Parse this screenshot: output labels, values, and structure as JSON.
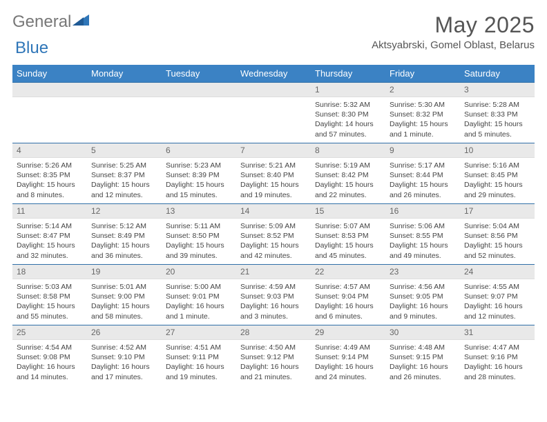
{
  "logo": {
    "general": "General",
    "blue": "Blue"
  },
  "title": "May 2025",
  "location": "Aktsyabrski, Gomel Oblast, Belarus",
  "header_color": "#3b82c4",
  "border_color": "#2f6fa8",
  "daynum_bg": "#e9e9e9",
  "weekdays": [
    "Sunday",
    "Monday",
    "Tuesday",
    "Wednesday",
    "Thursday",
    "Friday",
    "Saturday"
  ],
  "weeks": [
    [
      null,
      null,
      null,
      null,
      {
        "n": "1",
        "sunrise": "5:32 AM",
        "sunset": "8:30 PM",
        "daylight": "14 hours and 57 minutes."
      },
      {
        "n": "2",
        "sunrise": "5:30 AM",
        "sunset": "8:32 PM",
        "daylight": "15 hours and 1 minute."
      },
      {
        "n": "3",
        "sunrise": "5:28 AM",
        "sunset": "8:33 PM",
        "daylight": "15 hours and 5 minutes."
      }
    ],
    [
      {
        "n": "4",
        "sunrise": "5:26 AM",
        "sunset": "8:35 PM",
        "daylight": "15 hours and 8 minutes."
      },
      {
        "n": "5",
        "sunrise": "5:25 AM",
        "sunset": "8:37 PM",
        "daylight": "15 hours and 12 minutes."
      },
      {
        "n": "6",
        "sunrise": "5:23 AM",
        "sunset": "8:39 PM",
        "daylight": "15 hours and 15 minutes."
      },
      {
        "n": "7",
        "sunrise": "5:21 AM",
        "sunset": "8:40 PM",
        "daylight": "15 hours and 19 minutes."
      },
      {
        "n": "8",
        "sunrise": "5:19 AM",
        "sunset": "8:42 PM",
        "daylight": "15 hours and 22 minutes."
      },
      {
        "n": "9",
        "sunrise": "5:17 AM",
        "sunset": "8:44 PM",
        "daylight": "15 hours and 26 minutes."
      },
      {
        "n": "10",
        "sunrise": "5:16 AM",
        "sunset": "8:45 PM",
        "daylight": "15 hours and 29 minutes."
      }
    ],
    [
      {
        "n": "11",
        "sunrise": "5:14 AM",
        "sunset": "8:47 PM",
        "daylight": "15 hours and 32 minutes."
      },
      {
        "n": "12",
        "sunrise": "5:12 AM",
        "sunset": "8:49 PM",
        "daylight": "15 hours and 36 minutes."
      },
      {
        "n": "13",
        "sunrise": "5:11 AM",
        "sunset": "8:50 PM",
        "daylight": "15 hours and 39 minutes."
      },
      {
        "n": "14",
        "sunrise": "5:09 AM",
        "sunset": "8:52 PM",
        "daylight": "15 hours and 42 minutes."
      },
      {
        "n": "15",
        "sunrise": "5:07 AM",
        "sunset": "8:53 PM",
        "daylight": "15 hours and 45 minutes."
      },
      {
        "n": "16",
        "sunrise": "5:06 AM",
        "sunset": "8:55 PM",
        "daylight": "15 hours and 49 minutes."
      },
      {
        "n": "17",
        "sunrise": "5:04 AM",
        "sunset": "8:56 PM",
        "daylight": "15 hours and 52 minutes."
      }
    ],
    [
      {
        "n": "18",
        "sunrise": "5:03 AM",
        "sunset": "8:58 PM",
        "daylight": "15 hours and 55 minutes."
      },
      {
        "n": "19",
        "sunrise": "5:01 AM",
        "sunset": "9:00 PM",
        "daylight": "15 hours and 58 minutes."
      },
      {
        "n": "20",
        "sunrise": "5:00 AM",
        "sunset": "9:01 PM",
        "daylight": "16 hours and 1 minute."
      },
      {
        "n": "21",
        "sunrise": "4:59 AM",
        "sunset": "9:03 PM",
        "daylight": "16 hours and 3 minutes."
      },
      {
        "n": "22",
        "sunrise": "4:57 AM",
        "sunset": "9:04 PM",
        "daylight": "16 hours and 6 minutes."
      },
      {
        "n": "23",
        "sunrise": "4:56 AM",
        "sunset": "9:05 PM",
        "daylight": "16 hours and 9 minutes."
      },
      {
        "n": "24",
        "sunrise": "4:55 AM",
        "sunset": "9:07 PM",
        "daylight": "16 hours and 12 minutes."
      }
    ],
    [
      {
        "n": "25",
        "sunrise": "4:54 AM",
        "sunset": "9:08 PM",
        "daylight": "16 hours and 14 minutes."
      },
      {
        "n": "26",
        "sunrise": "4:52 AM",
        "sunset": "9:10 PM",
        "daylight": "16 hours and 17 minutes."
      },
      {
        "n": "27",
        "sunrise": "4:51 AM",
        "sunset": "9:11 PM",
        "daylight": "16 hours and 19 minutes."
      },
      {
        "n": "28",
        "sunrise": "4:50 AM",
        "sunset": "9:12 PM",
        "daylight": "16 hours and 21 minutes."
      },
      {
        "n": "29",
        "sunrise": "4:49 AM",
        "sunset": "9:14 PM",
        "daylight": "16 hours and 24 minutes."
      },
      {
        "n": "30",
        "sunrise": "4:48 AM",
        "sunset": "9:15 PM",
        "daylight": "16 hours and 26 minutes."
      },
      {
        "n": "31",
        "sunrise": "4:47 AM",
        "sunset": "9:16 PM",
        "daylight": "16 hours and 28 minutes."
      }
    ]
  ],
  "labels": {
    "sunrise": "Sunrise:",
    "sunset": "Sunset:",
    "daylight": "Daylight:"
  }
}
